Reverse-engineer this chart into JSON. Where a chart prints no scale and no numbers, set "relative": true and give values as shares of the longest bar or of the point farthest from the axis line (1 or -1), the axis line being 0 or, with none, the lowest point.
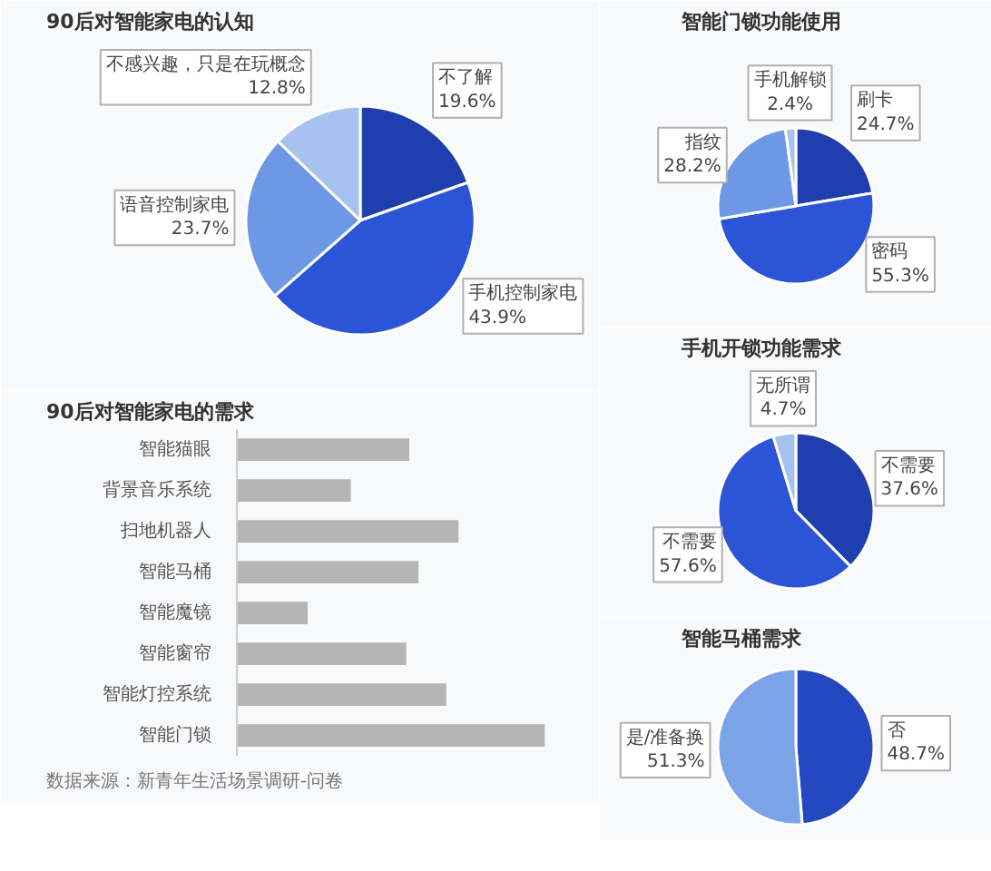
{
  "chart_data": [
    {
      "type": "pie",
      "title": "90后对智能家电的认知",
      "categories": [
        "不了解",
        "手机控制家电",
        "语音控制家电",
        "不感兴趣，只是在玩概念"
      ],
      "values": [
        19.6,
        43.9,
        23.7,
        12.8
      ],
      "value_labels": [
        "19.6%",
        "43.9%",
        "23.7%",
        "12.8%"
      ],
      "colors": [
        "#1f3fae",
        "#2b55d6",
        "#6e97e6",
        "#a8c2f0"
      ]
    },
    {
      "type": "pie",
      "title": "智能门锁功能使用",
      "categories": [
        "刷卡",
        "密码",
        "指纹",
        "手机解锁"
      ],
      "values": [
        24.7,
        55.3,
        28.2,
        2.4
      ],
      "value_labels": [
        "24.7%",
        "55.3%",
        "28.2%",
        "2.4%"
      ],
      "colors": [
        "#1f3fae",
        "#2b55d6",
        "#6e97e6",
        "#a8c2f0"
      ]
    },
    {
      "type": "pie",
      "title": "手机开锁功能需求",
      "categories": [
        "不需要",
        "不需要",
        "无所谓"
      ],
      "values": [
        37.6,
        57.6,
        4.7
      ],
      "value_labels": [
        "37.6%",
        "57.6%",
        "4.7%"
      ],
      "colors": [
        "#1f3fae",
        "#2b55d6",
        "#a8c2f0"
      ]
    },
    {
      "type": "bar",
      "title": "90后对智能家电的需求",
      "orientation": "horizontal",
      "relative": true,
      "categories": [
        "智能猫眼",
        "背景音乐系统",
        "扫地机器人",
        "智能马桶",
        "智能魔镜",
        "智能窗帘",
        "智能灯控系统",
        "智能门锁"
      ],
      "values": [
        0.56,
        0.37,
        0.72,
        0.59,
        0.23,
        0.55,
        0.68,
        1.0
      ],
      "color": "#b5b5b5",
      "annotations": [
        "数据来源：新青年生活场景调研-问卷"
      ]
    },
    {
      "type": "pie",
      "title": "智能马桶需求",
      "categories": [
        "否",
        "是/准备换"
      ],
      "values": [
        48.7,
        51.3
      ],
      "value_labels": [
        "48.7%",
        "51.3%"
      ],
      "colors": [
        "#2448c0",
        "#7ba3e8"
      ]
    }
  ]
}
